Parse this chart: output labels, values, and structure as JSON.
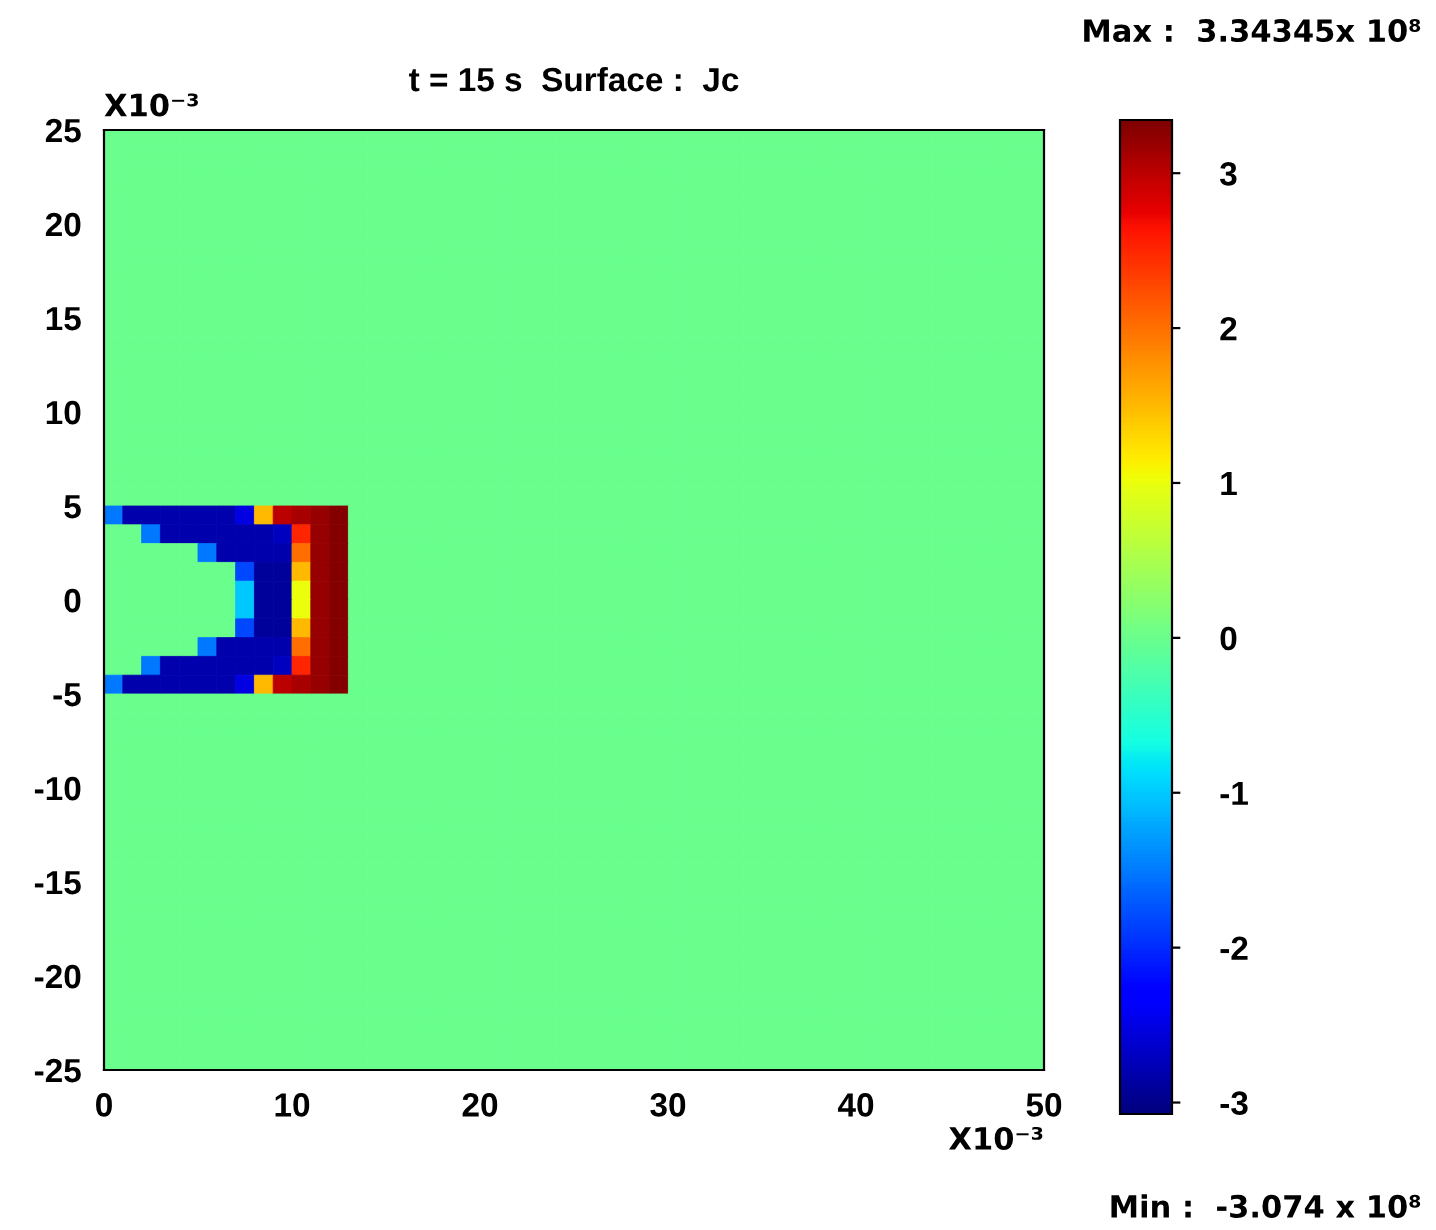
{
  "chart_data": {
    "type": "heatmap",
    "title": "t = 15 s  Surface :  Jc",
    "xlabel": "X10⁻³",
    "ylabel": "X10⁻³",
    "annotations": [
      "Max :  3.34345x 10⁸",
      "Min :  -3.074 x 10⁸"
    ],
    "xlim": [
      0,
      50
    ],
    "ylim": [
      -25,
      25
    ],
    "xticks": [
      0,
      10,
      20,
      30,
      40,
      50
    ],
    "yticks": [
      -25,
      -20,
      -15,
      -10,
      -5,
      0,
      5,
      10,
      15,
      20,
      25
    ],
    "clim": [
      -3.074,
      3.34345
    ],
    "cticks": [
      -3,
      -2,
      -1,
      0,
      1,
      2,
      3
    ],
    "cells": [
      [
        0,
        0,
        0,
        0,
        0,
        0,
        0,
        0,
        0,
        0,
        0,
        0,
        0,
        0,
        0,
        0,
        0,
        0,
        0,
        0,
        0,
        0,
        0,
        0,
        0,
        0,
        0,
        0,
        0,
        0,
        0,
        0,
        0,
        0,
        0,
        0,
        0,
        0,
        0,
        0,
        0,
        0,
        0,
        0,
        0,
        0,
        0,
        0,
        0,
        0
      ],
      [
        0,
        0,
        0,
        0,
        0,
        0,
        0,
        0,
        0,
        0,
        0,
        0,
        0,
        0,
        0,
        0,
        0,
        0,
        0,
        0,
        0,
        0,
        0,
        0,
        0,
        0,
        0,
        0,
        0,
        0,
        0,
        0,
        0,
        0,
        0,
        0,
        0,
        0,
        0,
        0,
        0,
        0,
        0,
        0,
        0,
        0,
        0,
        0,
        0,
        0
      ],
      [
        0,
        0,
        0,
        0,
        0,
        0,
        0,
        0,
        0,
        0,
        0,
        0,
        0,
        0,
        0,
        0,
        0,
        0,
        0,
        0,
        0,
        0,
        0,
        0,
        0,
        0,
        0,
        0,
        0,
        0,
        0,
        0,
        0,
        0,
        0,
        0,
        0,
        0,
        0,
        0,
        0,
        0,
        0,
        0,
        0,
        0,
        0,
        0,
        0,
        0
      ],
      [
        0,
        0,
        0,
        0,
        0,
        0,
        0,
        0,
        0,
        0,
        0,
        0,
        0,
        0,
        0,
        0,
        0,
        0,
        0,
        0,
        0,
        0,
        0,
        0,
        0,
        0,
        0,
        0,
        0,
        0,
        0,
        0,
        0,
        0,
        0,
        0,
        0,
        0,
        0,
        0,
        0,
        0,
        0,
        0,
        0,
        0,
        0,
        0,
        0,
        0
      ],
      [
        0,
        0,
        0,
        0,
        0,
        0,
        0,
        0,
        0,
        0,
        0,
        0,
        0,
        0,
        0,
        0,
        0,
        0,
        0,
        0,
        0,
        0,
        0,
        0,
        0,
        0,
        0,
        0,
        0,
        0,
        0,
        0,
        0,
        0,
        0,
        0,
        0,
        0,
        0,
        0,
        0,
        0,
        0,
        0,
        0,
        0,
        0,
        0,
        0,
        0
      ],
      [
        0,
        0,
        0,
        0,
        0,
        0,
        0,
        0,
        0,
        0,
        0,
        0,
        0,
        0,
        0,
        0,
        0,
        0,
        0,
        0,
        0,
        0,
        0,
        0,
        0,
        0,
        0,
        0,
        0,
        0,
        0,
        0,
        0,
        0,
        0,
        0,
        0,
        0,
        0,
        0,
        0,
        0,
        0,
        0,
        0,
        0,
        0,
        0,
        0,
        0
      ],
      [
        0,
        0,
        0,
        0,
        0,
        0,
        0,
        0,
        0,
        0,
        0,
        0,
        0,
        0,
        0,
        0,
        0,
        0,
        0,
        0,
        0,
        0,
        0,
        0,
        0,
        0,
        0,
        0,
        0,
        0,
        0,
        0,
        0,
        0,
        0,
        0,
        0,
        0,
        0,
        0,
        0,
        0,
        0,
        0,
        0,
        0,
        0,
        0,
        0,
        0
      ],
      [
        0,
        0,
        0,
        0,
        0,
        0,
        0,
        0,
        0,
        0,
        0,
        0,
        0,
        0,
        0,
        0,
        0,
        0,
        0,
        0,
        0,
        0,
        0,
        0,
        0,
        0,
        0,
        0,
        0,
        0,
        0,
        0,
        0,
        0,
        0,
        0,
        0,
        0,
        0,
        0,
        0,
        0,
        0,
        0,
        0,
        0,
        0,
        0,
        0,
        0
      ],
      [
        0,
        0,
        0,
        0,
        0,
        0,
        0,
        0,
        0,
        0,
        0,
        0,
        0,
        0,
        0,
        0,
        0,
        0,
        0,
        0,
        0,
        0,
        0,
        0,
        0,
        0,
        0,
        0,
        0,
        0,
        0,
        0,
        0,
        0,
        0,
        0,
        0,
        0,
        0,
        0,
        0,
        0,
        0,
        0,
        0,
        0,
        0,
        0,
        0,
        0
      ],
      [
        0,
        0,
        0,
        0,
        0,
        0,
        0,
        0,
        0,
        0,
        0,
        0,
        0,
        0,
        0,
        0,
        0,
        0,
        0,
        0,
        0,
        0,
        0,
        0,
        0,
        0,
        0,
        0,
        0,
        0,
        0,
        0,
        0,
        0,
        0,
        0,
        0,
        0,
        0,
        0,
        0,
        0,
        0,
        0,
        0,
        0,
        0,
        0,
        0,
        0
      ],
      [
        0,
        0,
        0,
        0,
        0,
        0,
        0,
        0,
        0,
        0,
        0,
        0,
        0,
        0,
        0,
        0,
        0,
        0,
        0,
        0,
        0,
        0,
        0,
        0,
        0,
        0,
        0,
        0,
        0,
        0,
        0,
        0,
        0,
        0,
        0,
        0,
        0,
        0,
        0,
        0,
        0,
        0,
        0,
        0,
        0,
        0,
        0,
        0,
        0,
        0
      ],
      [
        0,
        0,
        0,
        0,
        0,
        0,
        0,
        0,
        0,
        0,
        0,
        0,
        0,
        0,
        0,
        0,
        0,
        0,
        0,
        0,
        0,
        0,
        0,
        0,
        0,
        0,
        0,
        0,
        0,
        0,
        0,
        0,
        0,
        0,
        0,
        0,
        0,
        0,
        0,
        0,
        0,
        0,
        0,
        0,
        0,
        0,
        0,
        0,
        0,
        0
      ],
      [
        0,
        0,
        0,
        0,
        0,
        0,
        0,
        0,
        0,
        0,
        0,
        0,
        0,
        0,
        0,
        0,
        0,
        0,
        0,
        0,
        0,
        0,
        0,
        0,
        0,
        0,
        0,
        0,
        0,
        0,
        0,
        0,
        0,
        0,
        0,
        0,
        0,
        0,
        0,
        0,
        0,
        0,
        0,
        0,
        0,
        0,
        0,
        0,
        0,
        0
      ],
      [
        0,
        0,
        0,
        0,
        0,
        0,
        0,
        0,
        0,
        0,
        0,
        0,
        0,
        0,
        0,
        0,
        0,
        0,
        0,
        0,
        0,
        0,
        0,
        0,
        0,
        0,
        0,
        0,
        0,
        0,
        0,
        0,
        0,
        0,
        0,
        0,
        0,
        0,
        0,
        0,
        0,
        0,
        0,
        0,
        0,
        0,
        0,
        0,
        0,
        0
      ],
      [
        0,
        0,
        0,
        0,
        0,
        0,
        0,
        0,
        0,
        0,
        0,
        0,
        0,
        0,
        0,
        0,
        0,
        0,
        0,
        0,
        0,
        0,
        0,
        0,
        0,
        0,
        0,
        0,
        0,
        0,
        0,
        0,
        0,
        0,
        0,
        0,
        0,
        0,
        0,
        0,
        0,
        0,
        0,
        0,
        0,
        0,
        0,
        0,
        0,
        0
      ],
      [
        0,
        0,
        0,
        0,
        0,
        0,
        0,
        0,
        0,
        0,
        0,
        0,
        0,
        0,
        0,
        0,
        0,
        0,
        0,
        0,
        0,
        0,
        0,
        0,
        0,
        0,
        0,
        0,
        0,
        0,
        0,
        0,
        0,
        0,
        0,
        0,
        0,
        0,
        0,
        0,
        0,
        0,
        0,
        0,
        0,
        0,
        0,
        0,
        0,
        0
      ],
      [
        0,
        0,
        0,
        0,
        0,
        0,
        0,
        0,
        0,
        0,
        0,
        0,
        0,
        0,
        0,
        0,
        0,
        0,
        0,
        0,
        0,
        0,
        0,
        0,
        0,
        0,
        0,
        0,
        0,
        0,
        0,
        0,
        0,
        0,
        0,
        0,
        0,
        0,
        0,
        0,
        0,
        0,
        0,
        0,
        0,
        0,
        0,
        0,
        0,
        0
      ],
      [
        0,
        0,
        0,
        0,
        0,
        0,
        0,
        0,
        0,
        0,
        0,
        0,
        0,
        0,
        0,
        0,
        0,
        0,
        0,
        0,
        0,
        0,
        0,
        0,
        0,
        0,
        0,
        0,
        0,
        0,
        0,
        0,
        0,
        0,
        0,
        0,
        0,
        0,
        0,
        0,
        0,
        0,
        0,
        0,
        0,
        0,
        0,
        0,
        0,
        0
      ],
      [
        0,
        0,
        0,
        0,
        0,
        0,
        0,
        0,
        0,
        0,
        0,
        0,
        0,
        0,
        0,
        0,
        0,
        0,
        0,
        0,
        0,
        0,
        0,
        0,
        0,
        0,
        0,
        0,
        0,
        0,
        0,
        0,
        0,
        0,
        0,
        0,
        0,
        0,
        0,
        0,
        0,
        0,
        0,
        0,
        0,
        0,
        0,
        0,
        0,
        0
      ],
      [
        0,
        0,
        0,
        0,
        0,
        0,
        0,
        0,
        0,
        0,
        0,
        0,
        0,
        0,
        0,
        0,
        0,
        0,
        0,
        0,
        0,
        0,
        0,
        0,
        0,
        0,
        0,
        0,
        0,
        0,
        0,
        0,
        0,
        0,
        0,
        0,
        0,
        0,
        0,
        0,
        0,
        0,
        0,
        0,
        0,
        0,
        0,
        0,
        0,
        0
      ],
      [
        -1.5,
        -2.8,
        -2.8,
        -2.8,
        -2.8,
        -2.8,
        -2.8,
        -2.5,
        1.5,
        3.0,
        3.1,
        3.2,
        3.3,
        0,
        0,
        0,
        0,
        0,
        0,
        0,
        0,
        0,
        0,
        0,
        0,
        0,
        0,
        0,
        0,
        0,
        0,
        0,
        0,
        0,
        0,
        0,
        0,
        0,
        0,
        0,
        0,
        0,
        0,
        0,
        0,
        0,
        0,
        0,
        0,
        0
      ],
      [
        0,
        0,
        -1.5,
        -2.8,
        -2.8,
        -2.8,
        -2.8,
        -2.8,
        -2.8,
        -2.7,
        2.5,
        3.2,
        3.3,
        0,
        0,
        0,
        0,
        0,
        0,
        0,
        0,
        0,
        0,
        0,
        0,
        0,
        0,
        0,
        0,
        0,
        0,
        0,
        0,
        0,
        0,
        0,
        0,
        0,
        0,
        0,
        0,
        0,
        0,
        0,
        0,
        0,
        0,
        0,
        0,
        0
      ],
      [
        0,
        0,
        0,
        0,
        0,
        -1.5,
        -2.8,
        -2.8,
        -2.8,
        -2.8,
        2.0,
        3.2,
        3.3,
        0,
        0,
        0,
        0,
        0,
        0,
        0,
        0,
        0,
        0,
        0,
        0,
        0,
        0,
        0,
        0,
        0,
        0,
        0,
        0,
        0,
        0,
        0,
        0,
        0,
        0,
        0,
        0,
        0,
        0,
        0,
        0,
        0,
        0,
        0,
        0,
        0
      ],
      [
        0,
        0,
        0,
        0,
        0,
        0,
        0,
        -1.8,
        -2.9,
        -2.9,
        1.5,
        3.2,
        3.3,
        0,
        0,
        0,
        0,
        0,
        0,
        0,
        0,
        0,
        0,
        0,
        0,
        0,
        0,
        0,
        0,
        0,
        0,
        0,
        0,
        0,
        0,
        0,
        0,
        0,
        0,
        0,
        0,
        0,
        0,
        0,
        0,
        0,
        0,
        0,
        0,
        0
      ],
      [
        0,
        0,
        0,
        0,
        0,
        0,
        0,
        -1.0,
        -2.9,
        -2.9,
        1.0,
        3.2,
        3.3,
        0,
        0,
        0,
        0,
        0,
        0,
        0,
        0,
        0,
        0,
        0,
        0,
        0,
        0,
        0,
        0,
        0,
        0,
        0,
        0,
        0,
        0,
        0,
        0,
        0,
        0,
        0,
        0,
        0,
        0,
        0,
        0,
        0,
        0,
        0,
        0,
        0
      ],
      [
        0,
        0,
        0,
        0,
        0,
        0,
        0,
        -1.0,
        -2.9,
        -2.9,
        1.0,
        3.2,
        3.3,
        0,
        0,
        0,
        0,
        0,
        0,
        0,
        0,
        0,
        0,
        0,
        0,
        0,
        0,
        0,
        0,
        0,
        0,
        0,
        0,
        0,
        0,
        0,
        0,
        0,
        0,
        0,
        0,
        0,
        0,
        0,
        0,
        0,
        0,
        0,
        0,
        0
      ],
      [
        0,
        0,
        0,
        0,
        0,
        0,
        0,
        -1.8,
        -2.9,
        -2.9,
        1.5,
        3.2,
        3.3,
        0,
        0,
        0,
        0,
        0,
        0,
        0,
        0,
        0,
        0,
        0,
        0,
        0,
        0,
        0,
        0,
        0,
        0,
        0,
        0,
        0,
        0,
        0,
        0,
        0,
        0,
        0,
        0,
        0,
        0,
        0,
        0,
        0,
        0,
        0,
        0,
        0
      ],
      [
        0,
        0,
        0,
        0,
        0,
        -1.5,
        -2.8,
        -2.8,
        -2.8,
        -2.8,
        2.0,
        3.2,
        3.3,
        0,
        0,
        0,
        0,
        0,
        0,
        0,
        0,
        0,
        0,
        0,
        0,
        0,
        0,
        0,
        0,
        0,
        0,
        0,
        0,
        0,
        0,
        0,
        0,
        0,
        0,
        0,
        0,
        0,
        0,
        0,
        0,
        0,
        0,
        0,
        0,
        0
      ],
      [
        0,
        0,
        -1.5,
        -2.8,
        -2.8,
        -2.8,
        -2.8,
        -2.8,
        -2.8,
        -2.7,
        2.5,
        3.2,
        3.3,
        0,
        0,
        0,
        0,
        0,
        0,
        0,
        0,
        0,
        0,
        0,
        0,
        0,
        0,
        0,
        0,
        0,
        0,
        0,
        0,
        0,
        0,
        0,
        0,
        0,
        0,
        0,
        0,
        0,
        0,
        0,
        0,
        0,
        0,
        0,
        0,
        0
      ],
      [
        -1.5,
        -2.8,
        -2.8,
        -2.8,
        -2.8,
        -2.8,
        -2.8,
        -2.5,
        1.5,
        3.0,
        3.1,
        3.2,
        3.3,
        0,
        0,
        0,
        0,
        0,
        0,
        0,
        0,
        0,
        0,
        0,
        0,
        0,
        0,
        0,
        0,
        0,
        0,
        0,
        0,
        0,
        0,
        0,
        0,
        0,
        0,
        0,
        0,
        0,
        0,
        0,
        0,
        0,
        0,
        0,
        0,
        0
      ],
      [
        0,
        0,
        0,
        0,
        0,
        0,
        0,
        0,
        0,
        0,
        0,
        0,
        0,
        0,
        0,
        0,
        0,
        0,
        0,
        0,
        0,
        0,
        0,
        0,
        0,
        0,
        0,
        0,
        0,
        0,
        0,
        0,
        0,
        0,
        0,
        0,
        0,
        0,
        0,
        0,
        0,
        0,
        0,
        0,
        0,
        0,
        0,
        0,
        0,
        0
      ],
      [
        0,
        0,
        0,
        0,
        0,
        0,
        0,
        0,
        0,
        0,
        0,
        0,
        0,
        0,
        0,
        0,
        0,
        0,
        0,
        0,
        0,
        0,
        0,
        0,
        0,
        0,
        0,
        0,
        0,
        0,
        0,
        0,
        0,
        0,
        0,
        0,
        0,
        0,
        0,
        0,
        0,
        0,
        0,
        0,
        0,
        0,
        0,
        0,
        0,
        0
      ],
      [
        0,
        0,
        0,
        0,
        0,
        0,
        0,
        0,
        0,
        0,
        0,
        0,
        0,
        0,
        0,
        0,
        0,
        0,
        0,
        0,
        0,
        0,
        0,
        0,
        0,
        0,
        0,
        0,
        0,
        0,
        0,
        0,
        0,
        0,
        0,
        0,
        0,
        0,
        0,
        0,
        0,
        0,
        0,
        0,
        0,
        0,
        0,
        0,
        0,
        0
      ],
      [
        0,
        0,
        0,
        0,
        0,
        0,
        0,
        0,
        0,
        0,
        0,
        0,
        0,
        0,
        0,
        0,
        0,
        0,
        0,
        0,
        0,
        0,
        0,
        0,
        0,
        0,
        0,
        0,
        0,
        0,
        0,
        0,
        0,
        0,
        0,
        0,
        0,
        0,
        0,
        0,
        0,
        0,
        0,
        0,
        0,
        0,
        0,
        0,
        0,
        0
      ],
      [
        0,
        0,
        0,
        0,
        0,
        0,
        0,
        0,
        0,
        0,
        0,
        0,
        0,
        0,
        0,
        0,
        0,
        0,
        0,
        0,
        0,
        0,
        0,
        0,
        0,
        0,
        0,
        0,
        0,
        0,
        0,
        0,
        0,
        0,
        0,
        0,
        0,
        0,
        0,
        0,
        0,
        0,
        0,
        0,
        0,
        0,
        0,
        0,
        0,
        0
      ],
      [
        0,
        0,
        0,
        0,
        0,
        0,
        0,
        0,
        0,
        0,
        0,
        0,
        0,
        0,
        0,
        0,
        0,
        0,
        0,
        0,
        0,
        0,
        0,
        0,
        0,
        0,
        0,
        0,
        0,
        0,
        0,
        0,
        0,
        0,
        0,
        0,
        0,
        0,
        0,
        0,
        0,
        0,
        0,
        0,
        0,
        0,
        0,
        0,
        0,
        0
      ],
      [
        0,
        0,
        0,
        0,
        0,
        0,
        0,
        0,
        0,
        0,
        0,
        0,
        0,
        0,
        0,
        0,
        0,
        0,
        0,
        0,
        0,
        0,
        0,
        0,
        0,
        0,
        0,
        0,
        0,
        0,
        0,
        0,
        0,
        0,
        0,
        0,
        0,
        0,
        0,
        0,
        0,
        0,
        0,
        0,
        0,
        0,
        0,
        0,
        0,
        0
      ],
      [
        0,
        0,
        0,
        0,
        0,
        0,
        0,
        0,
        0,
        0,
        0,
        0,
        0,
        0,
        0,
        0,
        0,
        0,
        0,
        0,
        0,
        0,
        0,
        0,
        0,
        0,
        0,
        0,
        0,
        0,
        0,
        0,
        0,
        0,
        0,
        0,
        0,
        0,
        0,
        0,
        0,
        0,
        0,
        0,
        0,
        0,
        0,
        0,
        0,
        0
      ],
      [
        0,
        0,
        0,
        0,
        0,
        0,
        0,
        0,
        0,
        0,
        0,
        0,
        0,
        0,
        0,
        0,
        0,
        0,
        0,
        0,
        0,
        0,
        0,
        0,
        0,
        0,
        0,
        0,
        0,
        0,
        0,
        0,
        0,
        0,
        0,
        0,
        0,
        0,
        0,
        0,
        0,
        0,
        0,
        0,
        0,
        0,
        0,
        0,
        0,
        0
      ],
      [
        0,
        0,
        0,
        0,
        0,
        0,
        0,
        0,
        0,
        0,
        0,
        0,
        0,
        0,
        0,
        0,
        0,
        0,
        0,
        0,
        0,
        0,
        0,
        0,
        0,
        0,
        0,
        0,
        0,
        0,
        0,
        0,
        0,
        0,
        0,
        0,
        0,
        0,
        0,
        0,
        0,
        0,
        0,
        0,
        0,
        0,
        0,
        0,
        0,
        0
      ],
      [
        0,
        0,
        0,
        0,
        0,
        0,
        0,
        0,
        0,
        0,
        0,
        0,
        0,
        0,
        0,
        0,
        0,
        0,
        0,
        0,
        0,
        0,
        0,
        0,
        0,
        0,
        0,
        0,
        0,
        0,
        0,
        0,
        0,
        0,
        0,
        0,
        0,
        0,
        0,
        0,
        0,
        0,
        0,
        0,
        0,
        0,
        0,
        0,
        0,
        0
      ],
      [
        0,
        0,
        0,
        0,
        0,
        0,
        0,
        0,
        0,
        0,
        0,
        0,
        0,
        0,
        0,
        0,
        0,
        0,
        0,
        0,
        0,
        0,
        0,
        0,
        0,
        0,
        0,
        0,
        0,
        0,
        0,
        0,
        0,
        0,
        0,
        0,
        0,
        0,
        0,
        0,
        0,
        0,
        0,
        0,
        0,
        0,
        0,
        0,
        0,
        0
      ],
      [
        0,
        0,
        0,
        0,
        0,
        0,
        0,
        0,
        0,
        0,
        0,
        0,
        0,
        0,
        0,
        0,
        0,
        0,
        0,
        0,
        0,
        0,
        0,
        0,
        0,
        0,
        0,
        0,
        0,
        0,
        0,
        0,
        0,
        0,
        0,
        0,
        0,
        0,
        0,
        0,
        0,
        0,
        0,
        0,
        0,
        0,
        0,
        0,
        0,
        0
      ],
      [
        0,
        0,
        0,
        0,
        0,
        0,
        0,
        0,
        0,
        0,
        0,
        0,
        0,
        0,
        0,
        0,
        0,
        0,
        0,
        0,
        0,
        0,
        0,
        0,
        0,
        0,
        0,
        0,
        0,
        0,
        0,
        0,
        0,
        0,
        0,
        0,
        0,
        0,
        0,
        0,
        0,
        0,
        0,
        0,
        0,
        0,
        0,
        0,
        0,
        0
      ],
      [
        0,
        0,
        0,
        0,
        0,
        0,
        0,
        0,
        0,
        0,
        0,
        0,
        0,
        0,
        0,
        0,
        0,
        0,
        0,
        0,
        0,
        0,
        0,
        0,
        0,
        0,
        0,
        0,
        0,
        0,
        0,
        0,
        0,
        0,
        0,
        0,
        0,
        0,
        0,
        0,
        0,
        0,
        0,
        0,
        0,
        0,
        0,
        0,
        0,
        0
      ],
      [
        0,
        0,
        0,
        0,
        0,
        0,
        0,
        0,
        0,
        0,
        0,
        0,
        0,
        0,
        0,
        0,
        0,
        0,
        0,
        0,
        0,
        0,
        0,
        0,
        0,
        0,
        0,
        0,
        0,
        0,
        0,
        0,
        0,
        0,
        0,
        0,
        0,
        0,
        0,
        0,
        0,
        0,
        0,
        0,
        0,
        0,
        0,
        0,
        0,
        0
      ],
      [
        0,
        0,
        0,
        0,
        0,
        0,
        0,
        0,
        0,
        0,
        0,
        0,
        0,
        0,
        0,
        0,
        0,
        0,
        0,
        0,
        0,
        0,
        0,
        0,
        0,
        0,
        0,
        0,
        0,
        0,
        0,
        0,
        0,
        0,
        0,
        0,
        0,
        0,
        0,
        0,
        0,
        0,
        0,
        0,
        0,
        0,
        0,
        0,
        0,
        0
      ],
      [
        0,
        0,
        0,
        0,
        0,
        0,
        0,
        0,
        0,
        0,
        0,
        0,
        0,
        0,
        0,
        0,
        0,
        0,
        0,
        0,
        0,
        0,
        0,
        0,
        0,
        0,
        0,
        0,
        0,
        0,
        0,
        0,
        0,
        0,
        0,
        0,
        0,
        0,
        0,
        0,
        0,
        0,
        0,
        0,
        0,
        0,
        0,
        0,
        0,
        0
      ],
      [
        0,
        0,
        0,
        0,
        0,
        0,
        0,
        0,
        0,
        0,
        0,
        0,
        0,
        0,
        0,
        0,
        0,
        0,
        0,
        0,
        0,
        0,
        0,
        0,
        0,
        0,
        0,
        0,
        0,
        0,
        0,
        0,
        0,
        0,
        0,
        0,
        0,
        0,
        0,
        0,
        0,
        0,
        0,
        0,
        0,
        0,
        0,
        0,
        0,
        0
      ],
      [
        0,
        0,
        0,
        0,
        0,
        0,
        0,
        0,
        0,
        0,
        0,
        0,
        0,
        0,
        0,
        0,
        0,
        0,
        0,
        0,
        0,
        0,
        0,
        0,
        0,
        0,
        0,
        0,
        0,
        0,
        0,
        0,
        0,
        0,
        0,
        0,
        0,
        0,
        0,
        0,
        0,
        0,
        0,
        0,
        0,
        0,
        0,
        0,
        0,
        0
      ]
    ]
  }
}
